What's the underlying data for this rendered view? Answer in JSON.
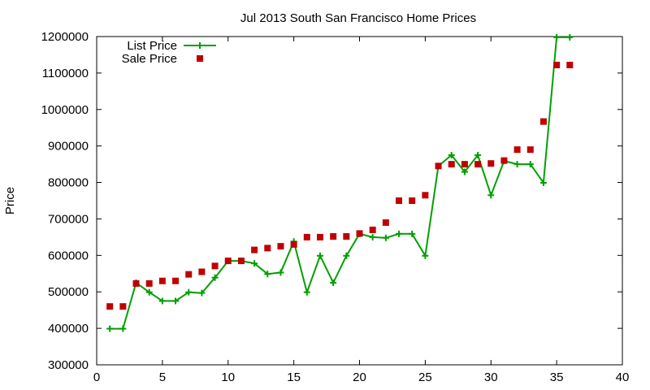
{
  "chart_data": {
    "type": "line",
    "title": "Jul 2013 South San Francisco Home Prices",
    "xlabel": "",
    "ylabel": "Price",
    "xlim": [
      0,
      40
    ],
    "ylim": [
      300000,
      1200000
    ],
    "x_ticks": [
      0,
      5,
      10,
      15,
      20,
      25,
      30,
      35,
      40
    ],
    "y_ticks": [
      300000,
      400000,
      500000,
      600000,
      700000,
      800000,
      900000,
      1000000,
      1100000,
      1200000
    ],
    "grid": false,
    "legend_position": "top-left",
    "series": [
      {
        "name": "List Price",
        "style": "line+cross",
        "color": "#00a000",
        "x": [
          1,
          2,
          3,
          4,
          5,
          6,
          7,
          8,
          9,
          10,
          11,
          12,
          13,
          14,
          15,
          16,
          17,
          18,
          19,
          20,
          21,
          22,
          23,
          24,
          25,
          26,
          27,
          28,
          29,
          30,
          31,
          32,
          33,
          34,
          35,
          36
        ],
        "y": [
          399000,
          399000,
          525000,
          499000,
          475000,
          475000,
          499000,
          497000,
          539000,
          585000,
          585000,
          578000,
          549000,
          553000,
          638000,
          499000,
          599000,
          525000,
          599000,
          659000,
          650000,
          648000,
          659000,
          659000,
          599000,
          845000,
          875000,
          829000,
          875000,
          765000,
          859000,
          850000,
          850000,
          799000,
          1198000,
          1198000
        ]
      },
      {
        "name": "Sale Price",
        "style": "square",
        "color": "#c00000",
        "x": [
          1,
          2,
          3,
          4,
          5,
          6,
          7,
          8,
          9,
          10,
          11,
          12,
          13,
          14,
          15,
          16,
          17,
          18,
          19,
          20,
          21,
          22,
          23,
          24,
          25,
          26,
          27,
          28,
          29,
          30,
          31,
          32,
          33,
          34,
          35,
          36
        ],
        "y": [
          460000,
          460000,
          523000,
          523000,
          530000,
          530000,
          548000,
          555000,
          571000,
          585000,
          585000,
          615000,
          620000,
          625000,
          630000,
          650000,
          650000,
          652000,
          652000,
          660000,
          670000,
          690000,
          750000,
          750000,
          765000,
          845000,
          850000,
          850000,
          850000,
          852000,
          860000,
          890000,
          890000,
          967000,
          1122000,
          1122000
        ]
      }
    ]
  }
}
